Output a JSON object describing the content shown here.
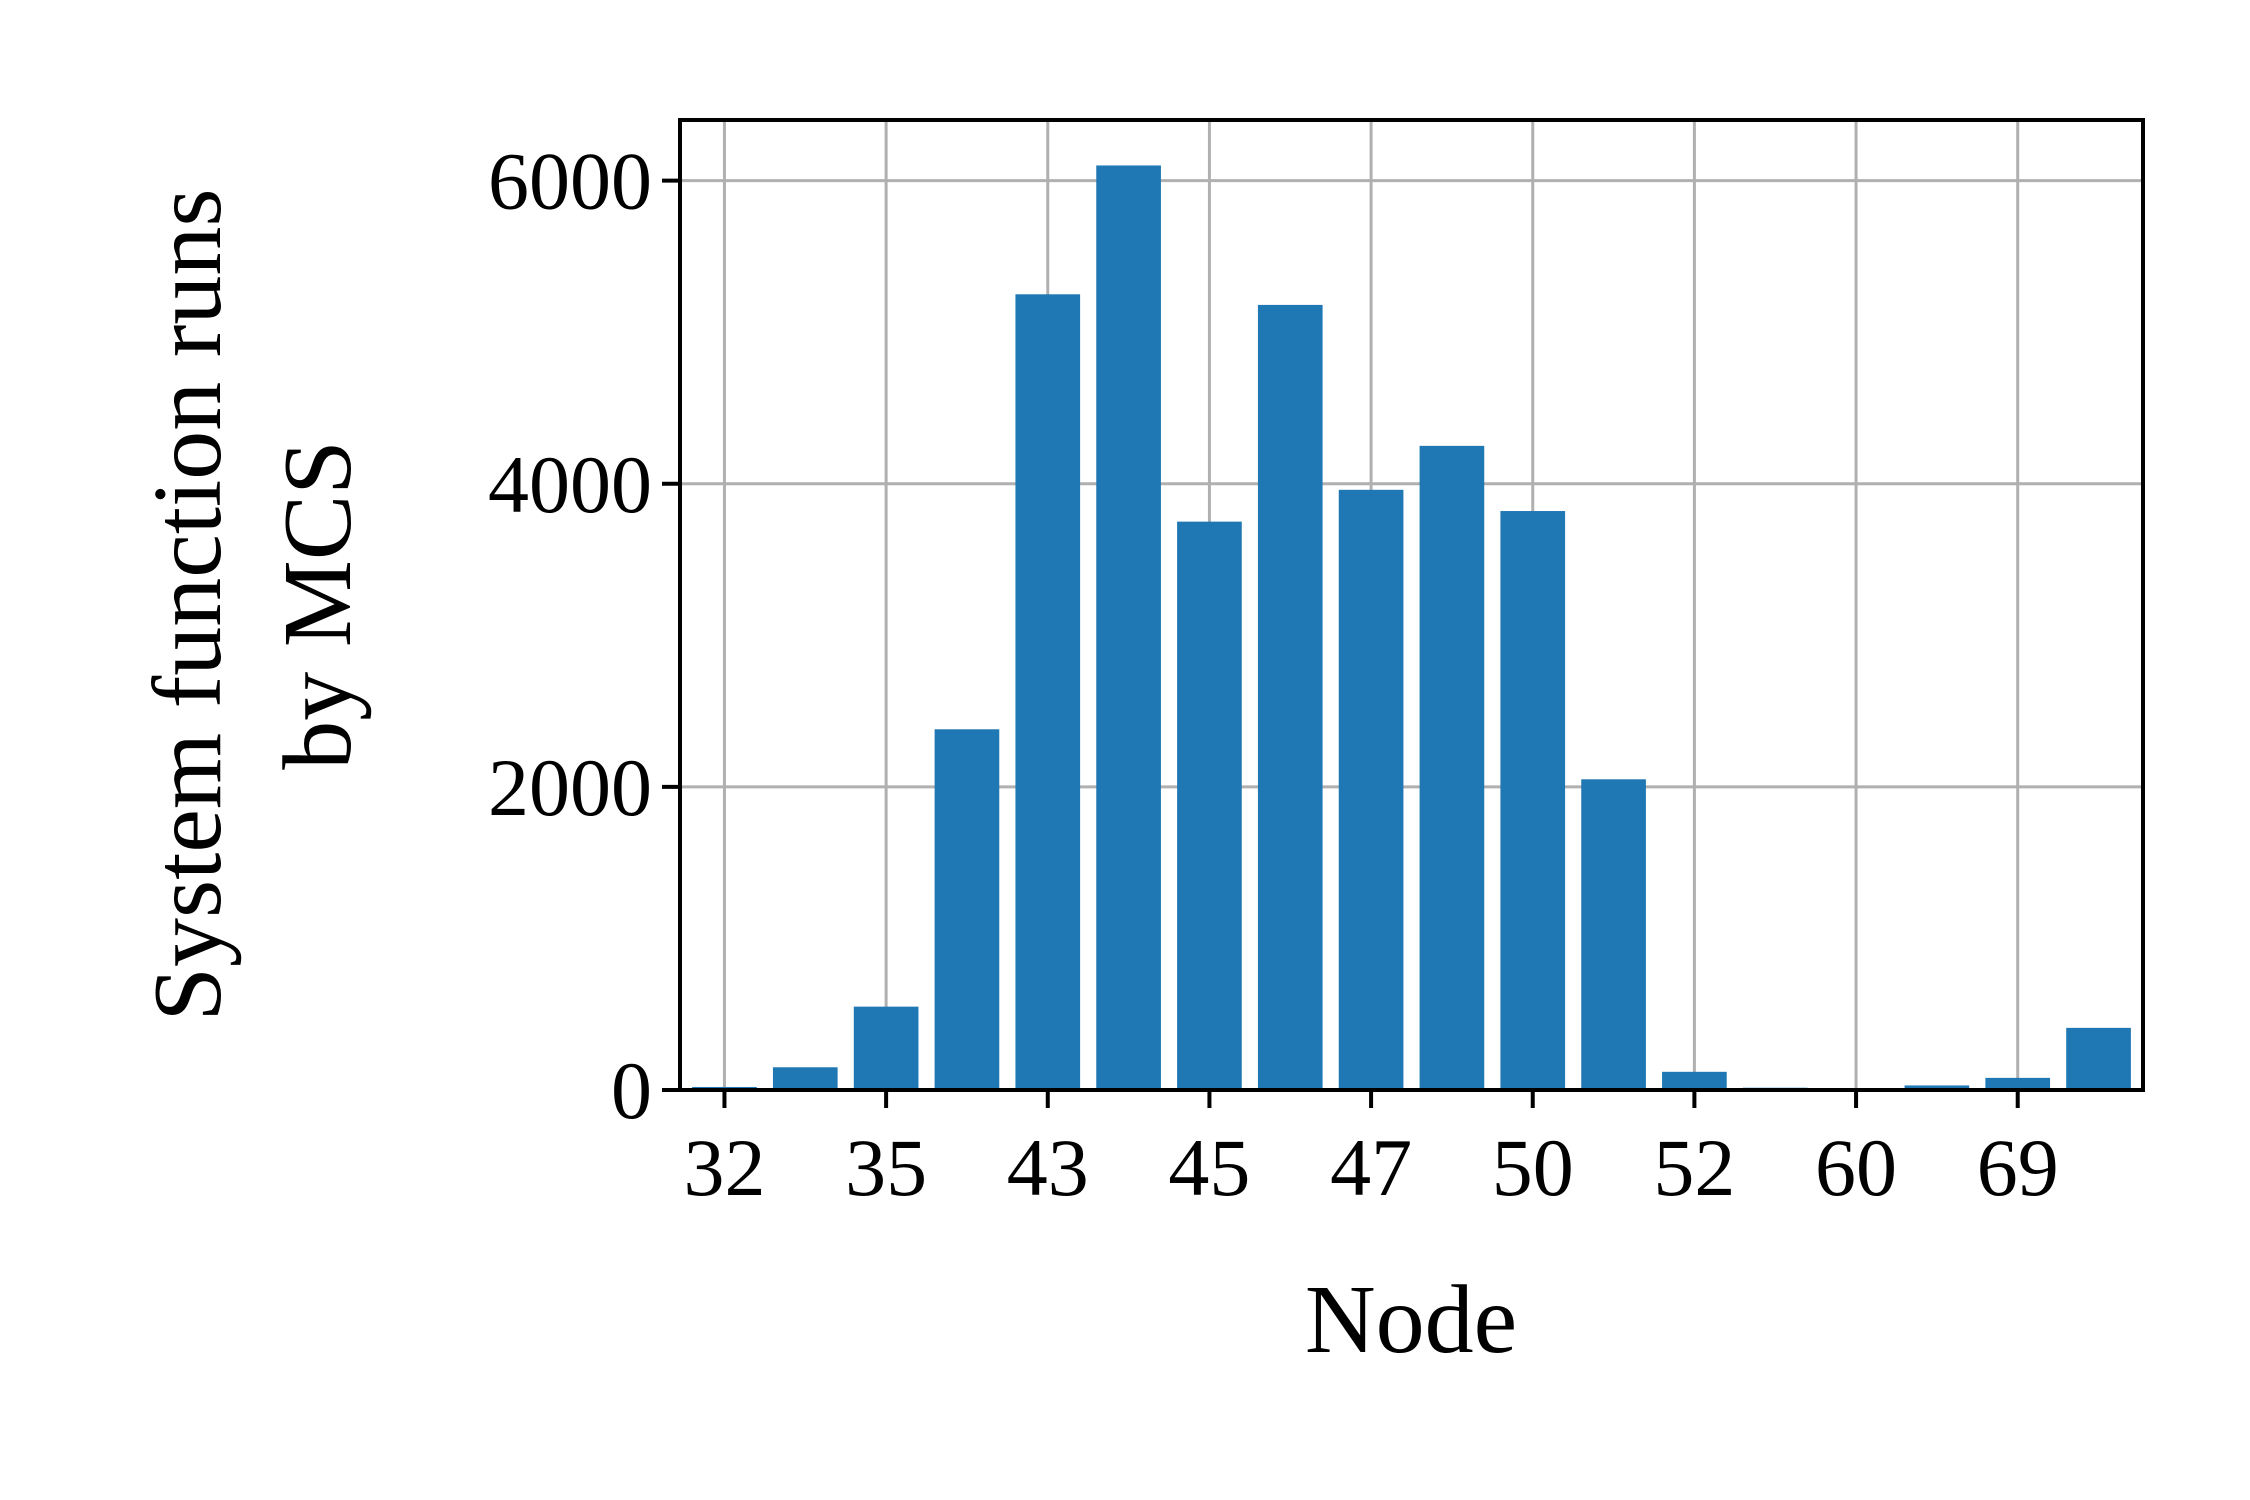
{
  "chart_data": {
    "type": "bar",
    "color": "#1f77b4",
    "xlabel": "Node",
    "ylabel": [
      "System function runs",
      "by MCS"
    ],
    "xtick_labels": [
      "32",
      "35",
      "43",
      "45",
      "47",
      "50",
      "52",
      "60",
      "69"
    ],
    "ytick_values": [
      0,
      2000,
      4000,
      6000
    ],
    "ytick_labels": [
      "0",
      "2000",
      "4000",
      "6000"
    ],
    "ylim": [
      0,
      6400
    ],
    "grid": true,
    "bars": [
      20,
      150,
      550,
      2380,
      5250,
      6100,
      3750,
      5180,
      3960,
      4250,
      3820,
      2050,
      120,
      15,
      10,
      30,
      80,
      410
    ]
  }
}
